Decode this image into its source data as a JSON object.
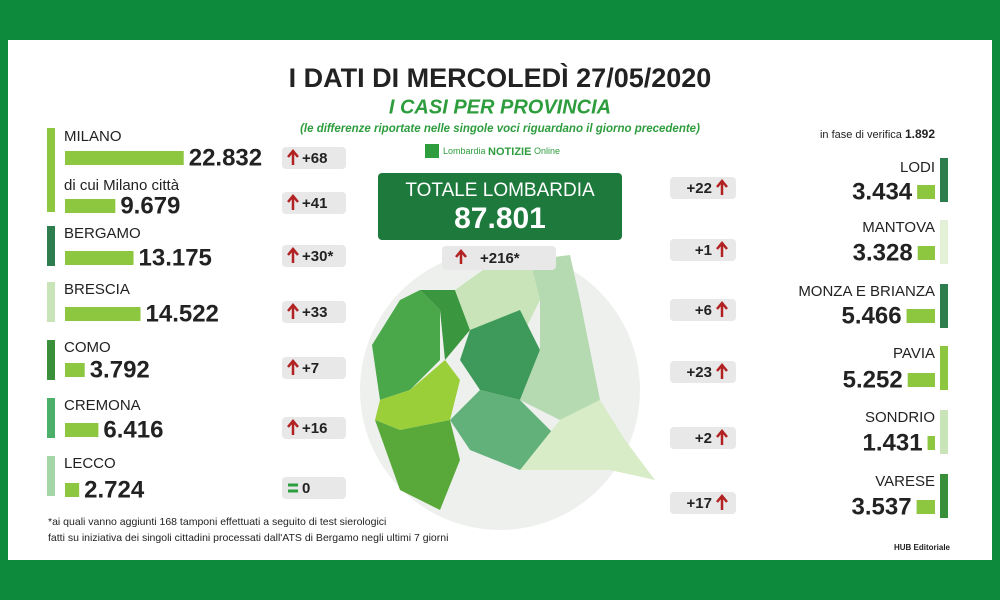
{
  "header": {
    "title": "I DATI DI MERCOLEDÌ 27/05/2020",
    "subtitle": "I CASI PER PROVINCIA",
    "note": "(le differenze riportate nelle singole voci riguardano il giorno precedente)",
    "brand": "Lombardia",
    "brand_bold": "NOTIZIE",
    "brand_suffix": "Online"
  },
  "total": {
    "label": "TOTALE LOMBARDIA",
    "value": "87.801",
    "change": "+216*"
  },
  "verification": {
    "label": "in fase di verifica",
    "value": "1.892"
  },
  "left": [
    {
      "name": "MILANO",
      "value": 22832,
      "value_label": "22.832",
      "change": "+68"
    },
    {
      "name": "di cui Milano città",
      "value": 9679,
      "value_label": "9.679",
      "change": "+41"
    },
    {
      "name": "BERGAMO",
      "value": 13175,
      "value_label": "13.175",
      "change": "+30*"
    },
    {
      "name": "BRESCIA",
      "value": 14522,
      "value_label": "14.522",
      "change": "+33"
    },
    {
      "name": "COMO",
      "value": 3792,
      "value_label": "3.792",
      "change": "+7"
    },
    {
      "name": "CREMONA",
      "value": 6416,
      "value_label": "6.416",
      "change": "+16"
    },
    {
      "name": "LECCO",
      "value": 2724,
      "value_label": "2.724",
      "change": "0"
    }
  ],
  "right": [
    {
      "name": "LODI",
      "value": 3434,
      "value_label": "3.434",
      "change": "+22"
    },
    {
      "name": "MANTOVA",
      "value": 3328,
      "value_label": "3.328",
      "change": "+1"
    },
    {
      "name": "MONZA E BRIANZA",
      "value": 5466,
      "value_label": "5.466",
      "change": "+6"
    },
    {
      "name": "PAVIA",
      "value": 5252,
      "value_label": "5.252",
      "change": "+23"
    },
    {
      "name": "SONDRIO",
      "value": 1431,
      "value_label": "1.431",
      "change": "+2"
    },
    {
      "name": "VARESE",
      "value": 3537,
      "value_label": "3.537",
      "change": "+17"
    }
  ],
  "footnote": [
    "*ai quali vanno aggiunti 168 tamponi effettuati a seguito di test sierologici",
    "fatti su iniziativa dei singoli cittadini processati dall'ATS di Bergamo negli ultimi 7 giorni"
  ],
  "credit": "HUB Editoriale"
}
